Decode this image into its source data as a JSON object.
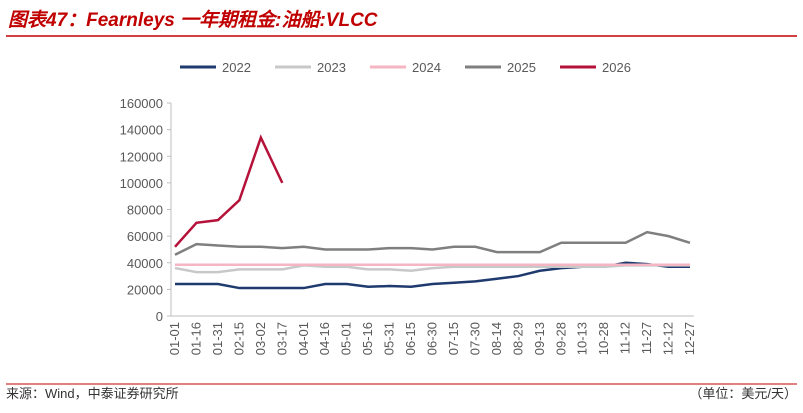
{
  "chart_data": {
    "type": "line",
    "title": "图表47：Fearnleys 一年期租金:油船:VLCC",
    "source": "来源：Wind，中泰证券研究所",
    "unit": "（单位：美元/天）",
    "categories": [
      "01-01",
      "01-16",
      "01-31",
      "02-15",
      "03-02",
      "03-17",
      "04-01",
      "04-16",
      "05-01",
      "05-16",
      "05-31",
      "06-15",
      "06-30",
      "07-15",
      "07-30",
      "08-14",
      "08-29",
      "09-13",
      "09-28",
      "10-13",
      "10-28",
      "11-12",
      "11-27",
      "12-12",
      "12-27"
    ],
    "series": [
      {
        "name": "2022",
        "color": "#1f3a6e",
        "values": [
          24000,
          24000,
          24000,
          21000,
          21000,
          21000,
          21000,
          24000,
          24000,
          22000,
          22500,
          22000,
          24000,
          25000,
          26000,
          28000,
          30000,
          34000,
          36000,
          37000,
          37000,
          40000,
          39000,
          37000,
          37000
        ]
      },
      {
        "name": "2023",
        "color": "#c8c8c8",
        "values": [
          36000,
          33000,
          33000,
          35000,
          35000,
          35000,
          38000,
          37000,
          37000,
          35000,
          35000,
          34000,
          36000,
          37000,
          37000,
          37000,
          37000,
          37000,
          37000,
          37000,
          37000,
          38000,
          38000,
          38000,
          38000
        ]
      },
      {
        "name": "2024",
        "color": "#f4b6c2",
        "values": [
          38500,
          38500,
          38500,
          38500,
          38500,
          38500,
          38500,
          38500,
          38500,
          38500,
          38500,
          38500,
          38500,
          38500,
          38500,
          38500,
          38500,
          38500,
          38500,
          38500,
          38500,
          38500,
          38500,
          38500,
          38500
        ]
      },
      {
        "name": "2025",
        "color": "#7f7f7f",
        "values": [
          46000,
          54000,
          53000,
          52000,
          52000,
          51000,
          52000,
          50000,
          50000,
          50000,
          51000,
          51000,
          50000,
          52000,
          52000,
          48000,
          48000,
          48000,
          55000,
          55000,
          55000,
          55000,
          63000,
          60000,
          55000
        ]
      },
      {
        "name": "2026",
        "color": "#b5123a",
        "values": [
          52000,
          70000,
          72000,
          87000,
          134000,
          100000,
          null,
          null,
          null,
          null,
          null,
          null,
          null,
          null,
          null,
          null,
          null,
          null,
          null,
          null,
          null,
          null,
          null,
          null,
          null
        ]
      }
    ],
    "ylim": [
      0,
      160000
    ],
    "yticks": [
      0,
      20000,
      40000,
      60000,
      80000,
      100000,
      120000,
      140000,
      160000
    ]
  }
}
